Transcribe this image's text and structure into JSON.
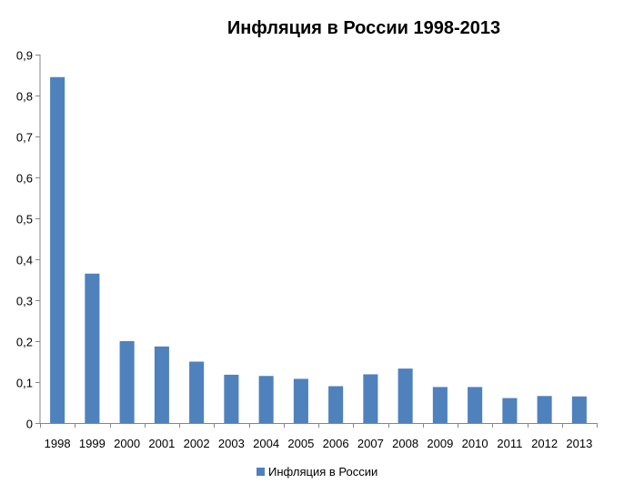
{
  "chart_data": {
    "type": "bar",
    "title": "Инфляция в России 1998-2013",
    "xlabel": "",
    "ylabel": "",
    "categories": [
      "1998",
      "1999",
      "2000",
      "2001",
      "2002",
      "2003",
      "2004",
      "2005",
      "2006",
      "2007",
      "2008",
      "2009",
      "2010",
      "2011",
      "2012",
      "2013"
    ],
    "series": [
      {
        "name": "Инфляция в России",
        "color": "#4f81bd",
        "values": [
          0.845,
          0.365,
          0.2,
          0.187,
          0.15,
          0.118,
          0.115,
          0.108,
          0.09,
          0.119,
          0.133,
          0.088,
          0.088,
          0.061,
          0.066,
          0.065
        ]
      }
    ],
    "y_ticks": [
      "0",
      "0,1",
      "0,2",
      "0,3",
      "0,4",
      "0,5",
      "0,6",
      "0,7",
      "0,8",
      "0,9"
    ],
    "ylim": [
      0,
      0.9
    ],
    "grid": false,
    "legend_position": "bottom"
  }
}
